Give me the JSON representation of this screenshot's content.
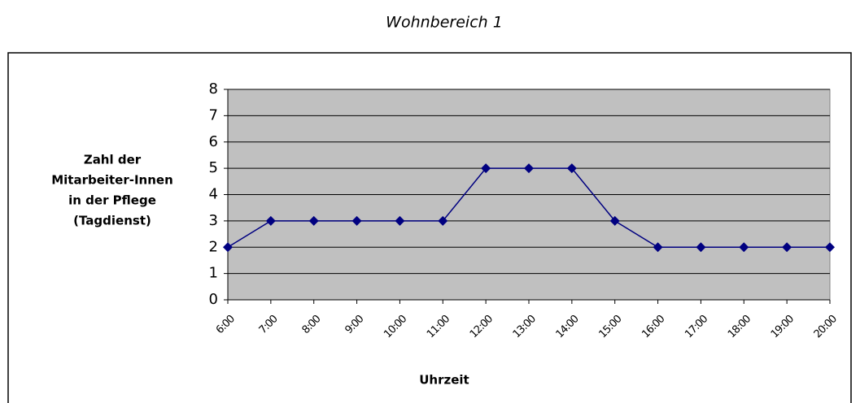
{
  "chart_data": {
    "type": "line",
    "title": "Wohnbereich 1",
    "ylabel": [
      "Zahl der",
      "Mitarbeiter-Innen",
      "in der Pflege",
      "(Tagdienst)"
    ],
    "xlabel": "Uhrzeit",
    "categories": [
      "6:00",
      "7:00",
      "8:00",
      "9:00",
      "10:00",
      "11:00",
      "12:00",
      "13:00",
      "14:00",
      "15:00",
      "16:00",
      "17:00",
      "18:00",
      "19:00",
      "20:00"
    ],
    "values": [
      2,
      3,
      3,
      3,
      3,
      3,
      5,
      5,
      5,
      3,
      2,
      2,
      2,
      2,
      2
    ],
    "color": "#000080",
    "ylim": [
      0,
      8
    ],
    "yticks": [
      0,
      1,
      2,
      3,
      4,
      5,
      6,
      7,
      8
    ],
    "grid": true
  }
}
